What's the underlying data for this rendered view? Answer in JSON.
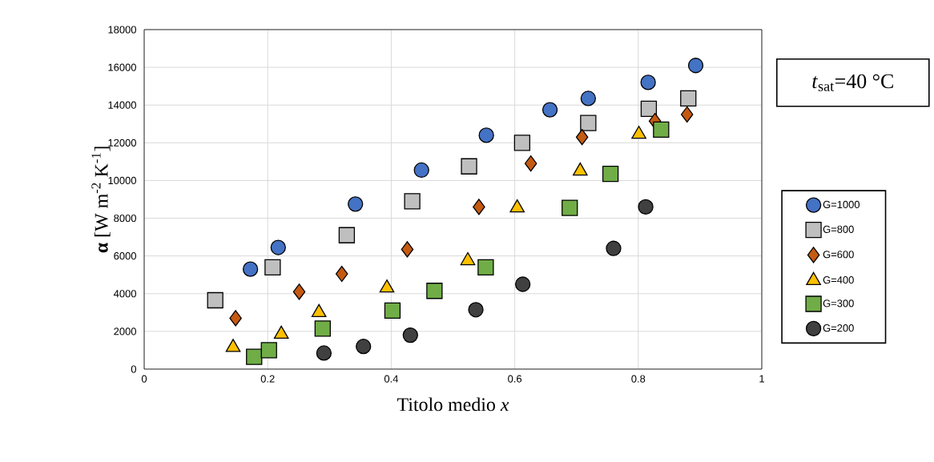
{
  "chart_data": {
    "type": "scatter",
    "xlabel": "Titolo medio *x*",
    "ylabel": "**α** [W m$^{-2}$ K$^{-1}$]",
    "annotations": [
      "*t*$_{sat}$=40 °C"
    ],
    "xlim": [
      0,
      1
    ],
    "xticks": [
      0,
      0.2,
      0.4,
      0.6,
      0.8,
      1
    ],
    "ylim": [
      0,
      18000
    ],
    "yticks": [
      0,
      2000,
      4000,
      6000,
      8000,
      10000,
      12000,
      14000,
      16000,
      18000
    ],
    "grid": true,
    "legend": "right",
    "series": [
      {
        "name": "G=1000",
        "color": "#4472c4",
        "marker": "circle",
        "x": [
          0.172,
          0.217,
          0.342,
          0.449,
          0.554,
          0.657,
          0.719,
          0.816,
          0.893
        ],
        "values": [
          5300,
          6450,
          8750,
          10550,
          12400,
          13750,
          14350,
          15200,
          16100
        ]
      },
      {
        "name": "G=800",
        "color": "#bfbfbf",
        "marker": "square",
        "x": [
          0.115,
          0.208,
          0.328,
          0.434,
          0.526,
          0.612,
          0.719,
          0.817,
          0.881
        ],
        "values": [
          3650,
          5400,
          7100,
          8900,
          10750,
          12000,
          13050,
          13800,
          14350
        ]
      },
      {
        "name": "G=600",
        "color": "#c55a11",
        "marker": "diamond",
        "x": [
          0.148,
          0.251,
          0.32,
          0.426,
          0.542,
          0.626,
          0.709,
          0.827,
          0.879
        ],
        "values": [
          2700,
          4100,
          5050,
          6350,
          8600,
          10900,
          12300,
          13150,
          13500
        ]
      },
      {
        "name": "G=400",
        "color": "#ffc000",
        "marker": "triangle",
        "x": [
          0.144,
          0.222,
          0.283,
          0.393,
          0.524,
          0.604,
          0.706,
          0.801
        ],
        "values": [
          1150,
          1850,
          3000,
          4300,
          5750,
          8550,
          10500,
          12450
        ]
      },
      {
        "name": "G=300",
        "color": "#70ad47",
        "marker": "square",
        "x": [
          0.178,
          0.202,
          0.289,
          0.402,
          0.47,
          0.553,
          0.689,
          0.755,
          0.837
        ],
        "values": [
          650,
          1000,
          2150,
          3100,
          4150,
          5400,
          8550,
          10350,
          12700
        ]
      },
      {
        "name": "G=200",
        "color": "#404040",
        "marker": "circle",
        "x": [
          0.291,
          0.355,
          0.431,
          0.537,
          0.613,
          0.76,
          0.812
        ],
        "values": [
          850,
          1200,
          1800,
          3150,
          4500,
          6400,
          8600
        ]
      }
    ]
  }
}
